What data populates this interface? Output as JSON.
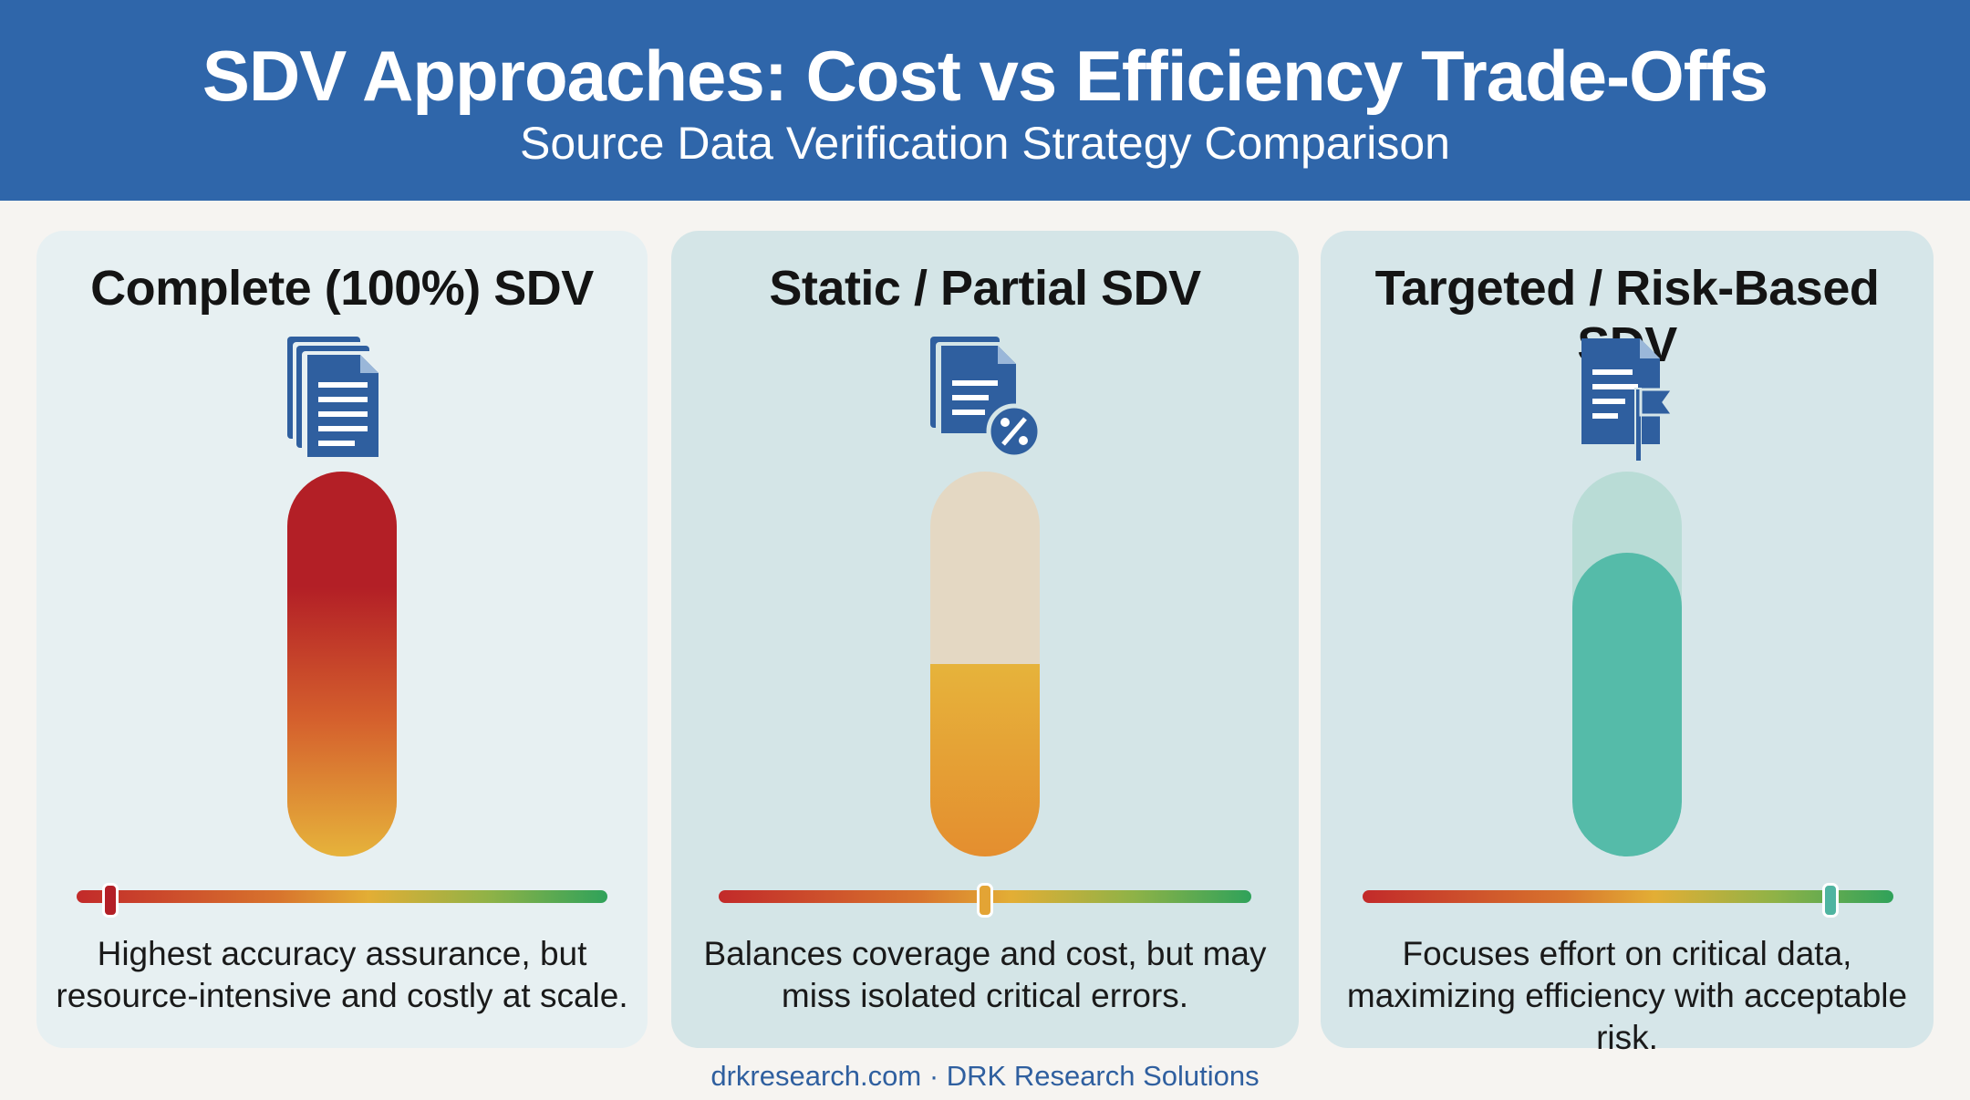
{
  "header": {
    "title": "SDV Approaches: Cost vs Efficiency Trade-Offs",
    "subtitle": "Source Data Verification Strategy Comparison"
  },
  "colors": {
    "header_bg": "#2f66aa",
    "icon": "#2f5f9f",
    "gauge_red": "#b31f26",
    "gauge_orange": "#e48e2f",
    "gauge_yellow": "#e6b33b",
    "gauge_teal": "#55bba9",
    "slider_green": "#2fa25a"
  },
  "panels": [
    {
      "title": "Complete (100%) SDV",
      "icon": "stacked-documents-icon",
      "fill_level": 1.0,
      "slider_position": 0.06,
      "description_line1": "Highest accuracy assurance, but",
      "description_line2": "resource-intensive and costly at scale."
    },
    {
      "title": "Static / Partial SDV",
      "icon": "documents-percent-icon",
      "fill_level": 0.5,
      "slider_position": 0.5,
      "description_line1": "Balances coverage and cost, but may",
      "description_line2": "miss isolated critical errors."
    },
    {
      "title": "Targeted / Risk-Based SDV",
      "icon": "document-flag-icon",
      "fill_level": 0.79,
      "slider_position": 0.88,
      "description_line1": "Focuses effort on critical data,",
      "description_line2": "maximizing efficiency with acceptable risk."
    }
  ],
  "footer": {
    "text": "drkresearch.com · DRK Research Solutions"
  }
}
